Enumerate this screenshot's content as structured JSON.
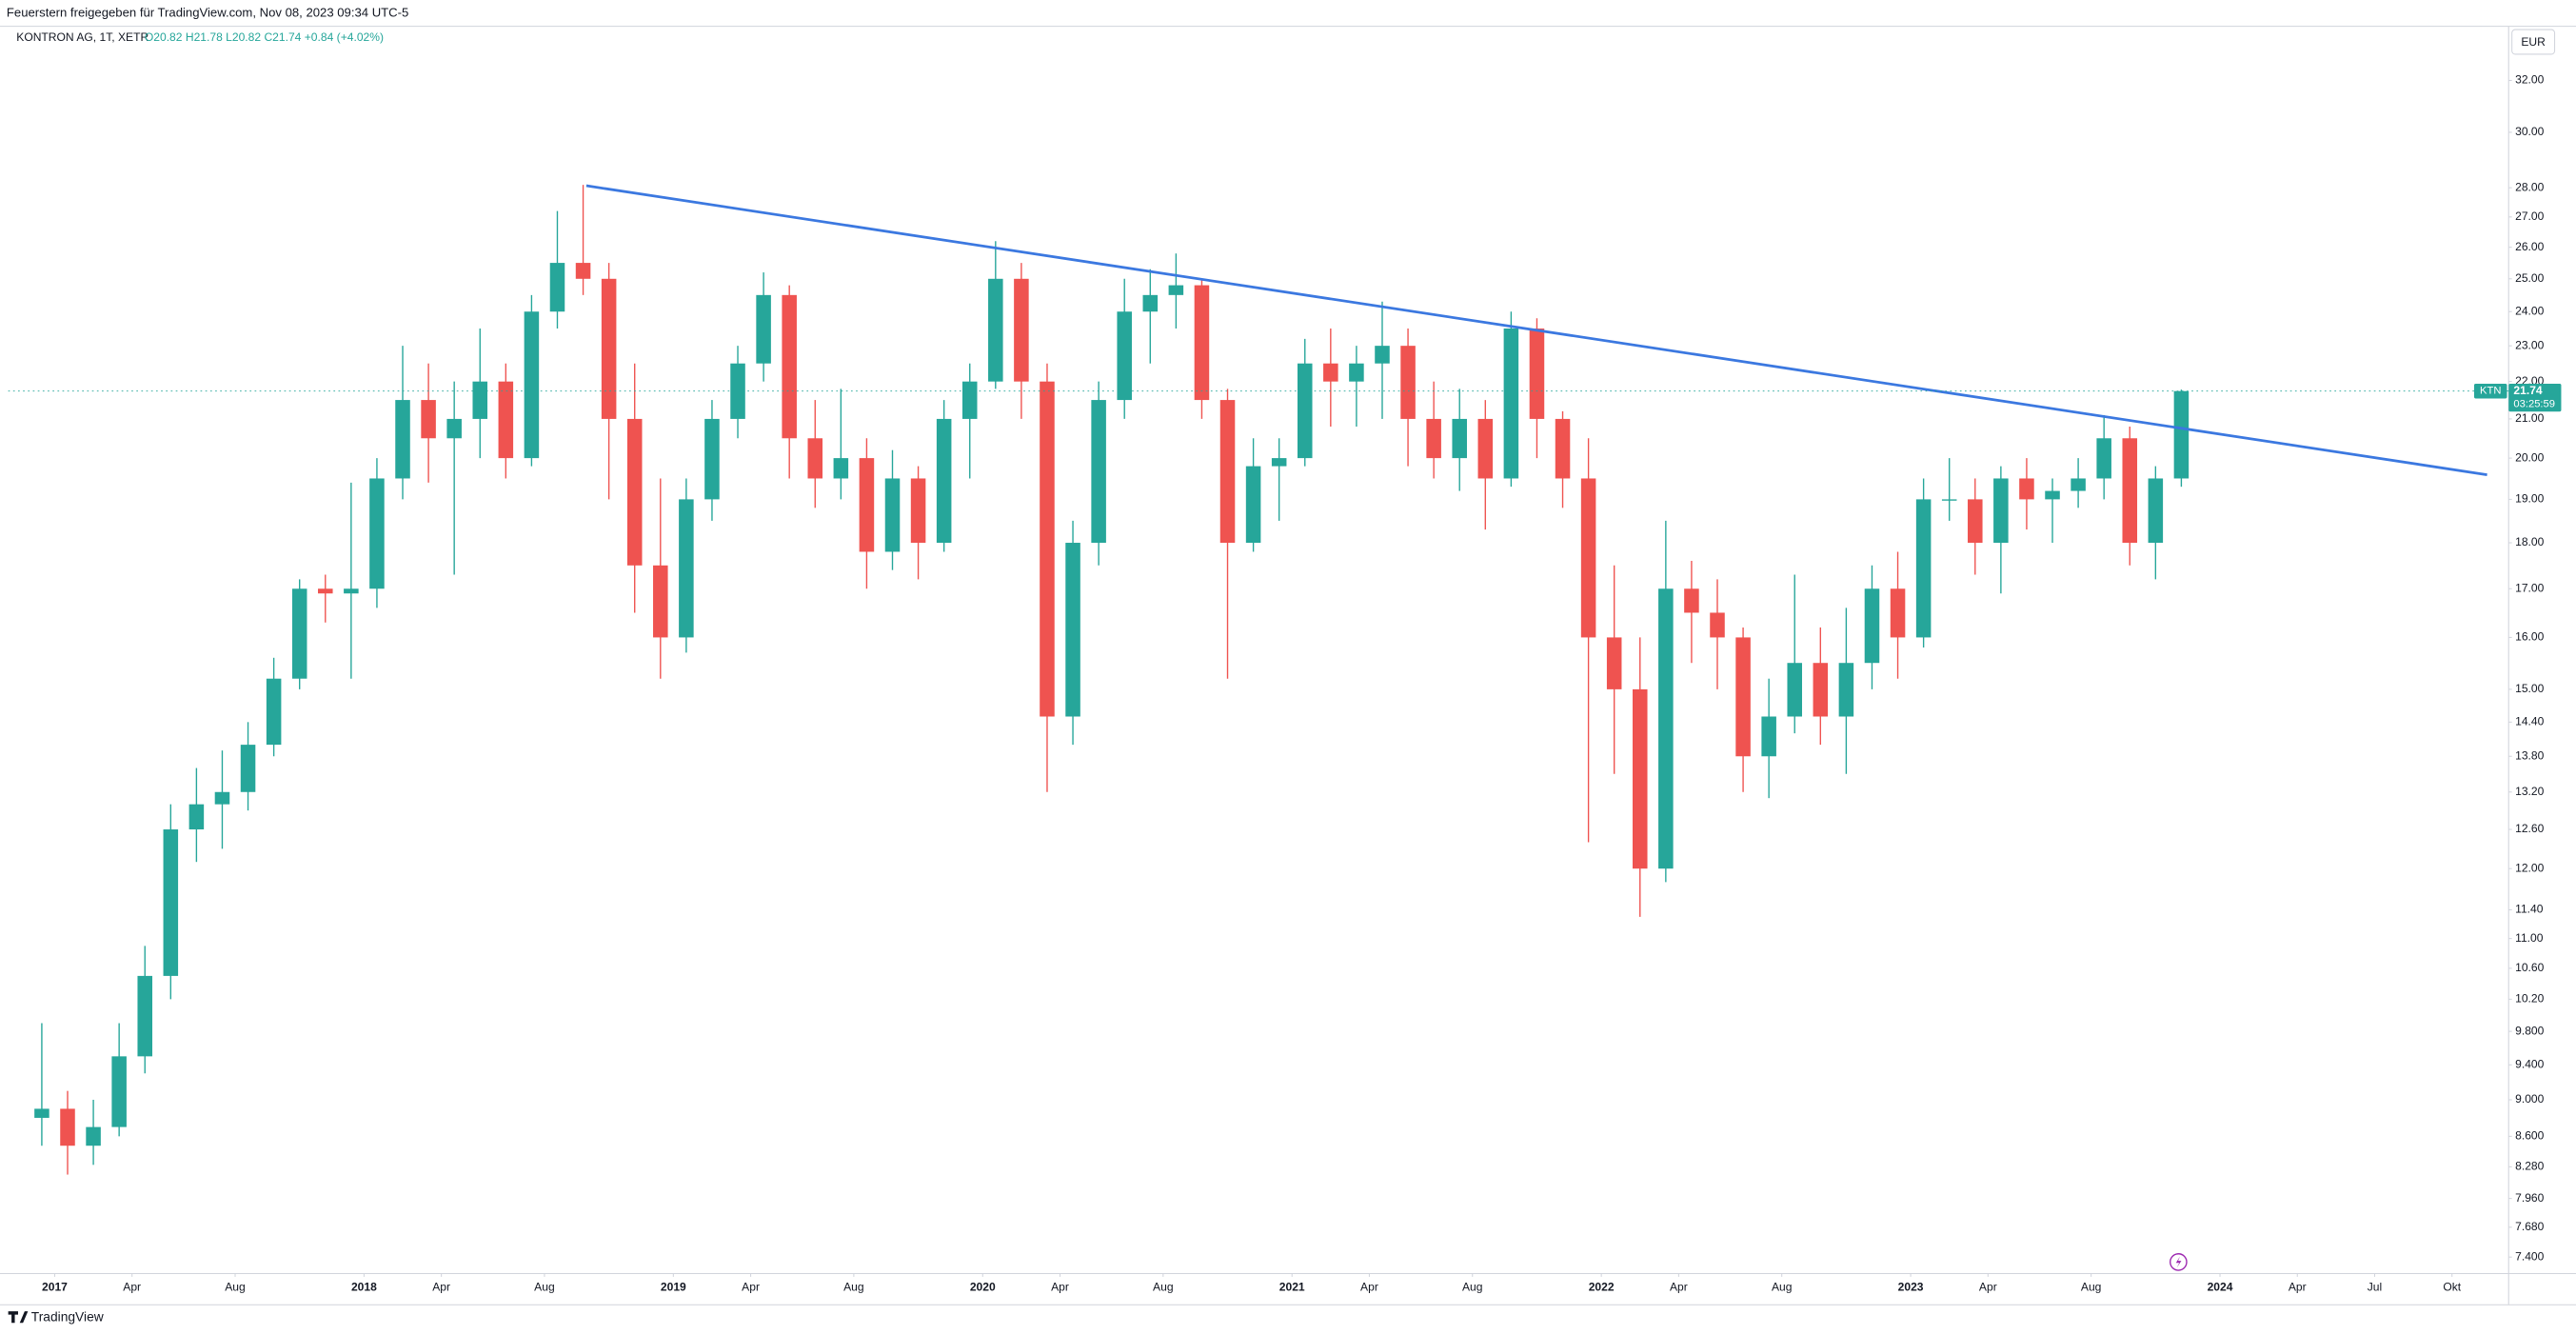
{
  "header": {
    "title": "Feuerstern freigegeben für TradingView.com, Nov 08, 2023 09:34 UTC-5"
  },
  "footer": {
    "brand": "TradingView"
  },
  "chart_data": {
    "type": "candlestick",
    "symbol": "KONTRON AG, 1T, XETR",
    "ohlc_text": "O20.82 H21.78 L20.82 C21.74 +0.84 (+4.02%)",
    "currency": "EUR",
    "price_tag": {
      "ticker": "KTN",
      "price": "21.74",
      "countdown": "03:25:59",
      "value": 21.74
    },
    "up_color": "#26a69a",
    "down_color": "#ef5350",
    "yscale": "log",
    "grid": false,
    "x": [
      "2016-12",
      "2017-01",
      "2017-02",
      "2017-03",
      "2017-04",
      "2017-05",
      "2017-06",
      "2017-07",
      "2017-08",
      "2017-09",
      "2017-10",
      "2017-11",
      "2017-12",
      "2018-01",
      "2018-02",
      "2018-03",
      "2018-04",
      "2018-05",
      "2018-06",
      "2018-07",
      "2018-08",
      "2018-09",
      "2018-10",
      "2018-11",
      "2018-12",
      "2019-01",
      "2019-02",
      "2019-03",
      "2019-04",
      "2019-05",
      "2019-06",
      "2019-07",
      "2019-08",
      "2019-09",
      "2019-10",
      "2019-11",
      "2019-12",
      "2020-01",
      "2020-02",
      "2020-03",
      "2020-04",
      "2020-05",
      "2020-06",
      "2020-07",
      "2020-08",
      "2020-09",
      "2020-10",
      "2020-11",
      "2020-12",
      "2021-01",
      "2021-02",
      "2021-03",
      "2021-04",
      "2021-05",
      "2021-06",
      "2021-07",
      "2021-08",
      "2021-09",
      "2021-10",
      "2021-11",
      "2021-12",
      "2022-01",
      "2022-02",
      "2022-03",
      "2022-04",
      "2022-05",
      "2022-06",
      "2022-07",
      "2022-08",
      "2022-09",
      "2022-10",
      "2022-11",
      "2022-12",
      "2023-01",
      "2023-02",
      "2023-03",
      "2023-04",
      "2023-05",
      "2023-06",
      "2023-07",
      "2023-08",
      "2023-09",
      "2023-10",
      "2023-11"
    ],
    "open": [
      8.8,
      8.9,
      8.5,
      8.7,
      9.5,
      10.5,
      12.6,
      13.0,
      13.2,
      14.0,
      15.2,
      17.0,
      16.9,
      17.0,
      19.5,
      21.5,
      20.5,
      21.0,
      22.0,
      20.0,
      24.0,
      25.5,
      25.0,
      21.0,
      17.5,
      16.0,
      19.0,
      21.0,
      22.5,
      24.5,
      20.5,
      19.5,
      20.0,
      17.8,
      19.5,
      18.0,
      21.0,
      22.0,
      25.0,
      22.0,
      14.5,
      18.0,
      21.5,
      24.0,
      24.5,
      24.8,
      21.5,
      18.0,
      19.8,
      20.0,
      22.5,
      22.0,
      22.5,
      23.0,
      21.0,
      20.0,
      21.0,
      19.5,
      23.5,
      21.0,
      19.5,
      16.0,
      15.0,
      12.0,
      17.0,
      16.5,
      16.0,
      13.8,
      14.5,
      15.5,
      14.5,
      15.5,
      17.0,
      16.0,
      19.0,
      19.0,
      18.0,
      19.5,
      19.0,
      19.2,
      19.5,
      20.5,
      18.0,
      19.5
    ],
    "high": [
      9.9,
      9.1,
      9.0,
      9.9,
      10.9,
      13.0,
      13.6,
      13.9,
      14.4,
      15.6,
      17.2,
      17.3,
      19.4,
      20.0,
      23.0,
      22.5,
      22.0,
      23.5,
      22.5,
      24.5,
      27.2,
      28.1,
      25.5,
      22.5,
      19.5,
      19.5,
      21.5,
      23.0,
      25.2,
      24.8,
      21.5,
      21.8,
      20.5,
      20.2,
      19.8,
      21.5,
      22.5,
      26.2,
      25.5,
      22.5,
      18.5,
      22.0,
      25.0,
      25.3,
      25.8,
      25.0,
      21.8,
      20.5,
      20.5,
      23.2,
      23.5,
      23.0,
      24.3,
      23.5,
      22.0,
      21.8,
      21.5,
      24.0,
      23.8,
      21.2,
      20.5,
      17.5,
      16.0,
      18.5,
      17.6,
      17.2,
      16.2,
      15.2,
      17.3,
      16.2,
      16.6,
      17.5,
      17.8,
      19.5,
      20.0,
      19.5,
      19.8,
      20.0,
      19.5,
      20.0,
      21.1,
      20.8,
      19.8,
      21.78
    ],
    "low": [
      8.5,
      8.2,
      8.3,
      8.6,
      9.3,
      10.2,
      12.1,
      12.3,
      12.9,
      13.8,
      15.0,
      16.3,
      15.2,
      16.6,
      19.0,
      19.4,
      17.3,
      20.0,
      19.5,
      19.8,
      23.5,
      24.5,
      19.0,
      16.5,
      15.2,
      15.7,
      18.5,
      20.5,
      22.0,
      19.5,
      18.8,
      19.0,
      17.0,
      17.4,
      17.2,
      17.8,
      19.5,
      21.8,
      21.0,
      13.2,
      14.0,
      17.5,
      21.0,
      22.5,
      23.5,
      21.0,
      15.2,
      17.8,
      18.5,
      19.8,
      20.8,
      20.8,
      21.0,
      19.8,
      19.5,
      19.2,
      18.3,
      19.3,
      20.0,
      18.8,
      12.4,
      13.5,
      11.3,
      11.8,
      15.5,
      15.0,
      13.2,
      13.1,
      14.2,
      14.0,
      13.5,
      15.0,
      15.2,
      15.8,
      18.5,
      17.3,
      16.9,
      18.3,
      18.0,
      18.8,
      19.0,
      17.5,
      17.2,
      19.3
    ],
    "close": [
      8.9,
      8.5,
      8.7,
      9.5,
      10.5,
      12.6,
      13.0,
      13.2,
      14.0,
      15.2,
      17.0,
      16.9,
      17.0,
      19.5,
      21.5,
      20.5,
      21.0,
      22.0,
      20.0,
      24.0,
      25.5,
      25.0,
      21.0,
      17.5,
      16.0,
      19.0,
      21.0,
      22.5,
      24.5,
      20.5,
      19.5,
      20.0,
      17.8,
      19.5,
      18.0,
      21.0,
      22.0,
      25.0,
      22.0,
      14.5,
      18.0,
      21.5,
      24.0,
      24.5,
      24.8,
      21.5,
      18.0,
      19.8,
      20.0,
      22.5,
      22.0,
      22.5,
      23.0,
      21.0,
      20.0,
      21.0,
      19.5,
      23.5,
      21.0,
      19.5,
      16.0,
      15.0,
      12.0,
      17.0,
      16.5,
      16.0,
      13.8,
      14.5,
      15.5,
      14.5,
      15.5,
      17.0,
      16.0,
      19.0,
      19.0,
      18.0,
      19.5,
      19.0,
      19.2,
      19.5,
      20.5,
      18.0,
      19.5,
      21.74
    ],
    "trendline": {
      "x": [
        "2018-09-20",
        "2024-11-12"
      ],
      "values": [
        28.07,
        19.59
      ],
      "color": "#3b78e0"
    },
    "xlim": [
      "2016-11-07",
      "2024-12-07"
    ],
    "ylim": [
      7.25,
      34.23
    ],
    "xticks": [
      {
        "value": "2017-01",
        "label": "2017"
      },
      {
        "value": "2017-04",
        "label": "Apr"
      },
      {
        "value": "2017-08",
        "label": "Aug"
      },
      {
        "value": "2018-01",
        "label": "2018"
      },
      {
        "value": "2018-04",
        "label": "Apr"
      },
      {
        "value": "2018-08",
        "label": "Aug"
      },
      {
        "value": "2019-01",
        "label": "2019"
      },
      {
        "value": "2019-04",
        "label": "Apr"
      },
      {
        "value": "2019-08",
        "label": "Aug"
      },
      {
        "value": "2020-01",
        "label": "2020"
      },
      {
        "value": "2020-04",
        "label": "Apr"
      },
      {
        "value": "2020-08",
        "label": "Aug"
      },
      {
        "value": "2021-01",
        "label": "2021"
      },
      {
        "value": "2021-04",
        "label": "Apr"
      },
      {
        "value": "2021-08",
        "label": "Aug"
      },
      {
        "value": "2022-01",
        "label": "2022"
      },
      {
        "value": "2022-04",
        "label": "Apr"
      },
      {
        "value": "2022-08",
        "label": "Aug"
      },
      {
        "value": "2023-01",
        "label": "2023"
      },
      {
        "value": "2023-04",
        "label": "Apr"
      },
      {
        "value": "2023-08",
        "label": "Aug"
      },
      {
        "value": "2024-01",
        "label": "2024"
      },
      {
        "value": "2024-04",
        "label": "Apr"
      },
      {
        "value": "2024-07",
        "label": "Jul"
      },
      {
        "value": "2024-10",
        "label": "Okt"
      }
    ],
    "yticks": [
      {
        "value": 32,
        "label": "32.00"
      },
      {
        "value": 30,
        "label": "30.00"
      },
      {
        "value": 28,
        "label": "28.00"
      },
      {
        "value": 27,
        "label": "27.00"
      },
      {
        "value": 26,
        "label": "26.00"
      },
      {
        "value": 25,
        "label": "25.00"
      },
      {
        "value": 24,
        "label": "24.00"
      },
      {
        "value": 23,
        "label": "23.00"
      },
      {
        "value": 22,
        "label": "22.00"
      },
      {
        "value": 21,
        "label": "21.00"
      },
      {
        "value": 20,
        "label": "20.00"
      },
      {
        "value": 19,
        "label": "19.00"
      },
      {
        "value": 18,
        "label": "18.00"
      },
      {
        "value": 17,
        "label": "17.00"
      },
      {
        "value": 16,
        "label": "16.00"
      },
      {
        "value": 15,
        "label": "15.00"
      },
      {
        "value": 14.4,
        "label": "14.40"
      },
      {
        "value": 13.8,
        "label": "13.80"
      },
      {
        "value": 13.2,
        "label": "13.20"
      },
      {
        "value": 12.6,
        "label": "12.60"
      },
      {
        "value": 12,
        "label": "12.00"
      },
      {
        "value": 11.4,
        "label": "11.40"
      },
      {
        "value": 11,
        "label": "11.00"
      },
      {
        "value": 10.6,
        "label": "10.60"
      },
      {
        "value": 10.2,
        "label": "10.20"
      },
      {
        "value": 9.8,
        "label": "9.800"
      },
      {
        "value": 9.4,
        "label": "9.400"
      },
      {
        "value": 9,
        "label": "9.000"
      },
      {
        "value": 8.6,
        "label": "8.600"
      },
      {
        "value": 8.28,
        "label": "8.280"
      },
      {
        "value": 7.96,
        "label": "7.960"
      },
      {
        "value": 7.68,
        "label": "7.680"
      },
      {
        "value": 7.4,
        "label": "7.400"
      }
    ]
  }
}
